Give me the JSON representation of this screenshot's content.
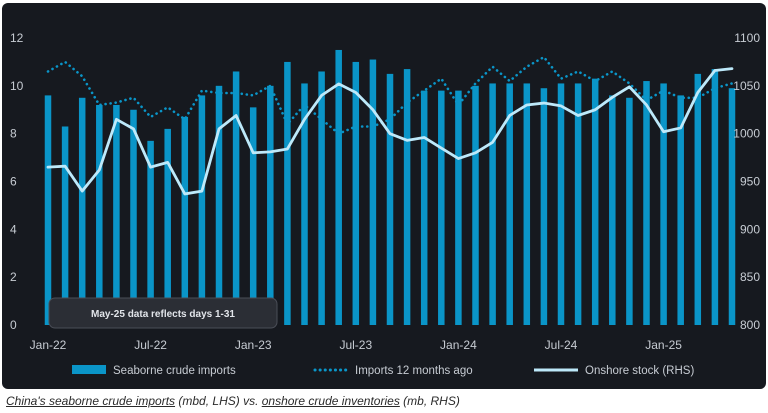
{
  "chart_data": {
    "type": "bar",
    "x": [
      "Jan-22",
      "Feb-22",
      "Mar-22",
      "Apr-22",
      "May-22",
      "Jun-22",
      "Jul-22",
      "Aug-22",
      "Sep-22",
      "Oct-22",
      "Nov-22",
      "Dec-22",
      "Jan-23",
      "Feb-23",
      "Mar-23",
      "Apr-23",
      "May-23",
      "Jun-23",
      "Jul-23",
      "Aug-23",
      "Sep-23",
      "Oct-23",
      "Nov-23",
      "Dec-23",
      "Jan-24",
      "Feb-24",
      "Mar-24",
      "Apr-24",
      "May-24",
      "Jun-24",
      "Jul-24",
      "Aug-24",
      "Sep-24",
      "Oct-24",
      "Nov-24",
      "Dec-24",
      "Jan-25",
      "Feb-25",
      "Mar-25",
      "Apr-25",
      "May-25"
    ],
    "x_tick_labels": [
      "Jan-22",
      "Jul-22",
      "Jan-23",
      "Jul-23",
      "Jan-24",
      "Jul-24",
      "Jan-25"
    ],
    "series": [
      {
        "name": "Seaborne crude imports",
        "kind": "bar",
        "axis": "left",
        "color": "#0a95c8",
        "values": [
          9.6,
          8.3,
          9.5,
          9.2,
          9.2,
          9.0,
          7.7,
          8.2,
          8.7,
          9.6,
          10.0,
          10.6,
          9.1,
          10.0,
          11.0,
          10.1,
          10.6,
          11.5,
          11.0,
          11.1,
          10.5,
          10.7,
          9.8,
          9.8,
          9.8,
          10.0,
          10.1,
          10.1,
          10.1,
          9.9,
          10.1,
          10.1,
          10.3,
          9.6,
          9.5,
          10.2,
          10.1,
          9.6,
          10.5,
          10.7,
          9.9
        ]
      },
      {
        "name": "Imports 12 months ago",
        "kind": "dotted-line",
        "axis": "left",
        "color": "#0a95c8",
        "values": [
          10.6,
          11.0,
          10.4,
          9.2,
          9.3,
          9.5,
          8.7,
          9.1,
          8.6,
          9.8,
          9.7,
          9.7,
          9.6,
          10.0,
          8.4,
          9.2,
          8.6,
          8.0,
          8.3,
          8.3,
          8.6,
          9.3,
          9.8,
          10.3,
          9.2,
          10.1,
          10.8,
          10.2,
          10.8,
          11.2,
          10.3,
          10.6,
          10.2,
          10.6,
          10.1,
          9.4,
          9.8,
          9.5,
          9.5,
          9.9,
          10.1
        ]
      },
      {
        "name": "Onshore stock (RHS)",
        "kind": "line",
        "axis": "right",
        "color": "#bde9fa",
        "values": [
          965,
          966,
          940,
          962,
          1015,
          1005,
          965,
          970,
          937,
          940,
          1005,
          1019,
          980,
          981,
          984,
          1015,
          1040,
          1052,
          1043,
          1025,
          1000,
          993,
          996,
          985,
          974,
          980,
          991,
          1019,
          1030,
          1032,
          1029,
          1019,
          1025,
          1038,
          1049,
          1030,
          1002,
          1006,
          1043,
          1066,
          1068
        ]
      }
    ],
    "ylim_left": [
      0,
      12
    ],
    "yticks_left": [
      0,
      2,
      4,
      6,
      8,
      10,
      12
    ],
    "ylim_right": [
      800,
      1100
    ],
    "yticks_right": [
      800,
      850,
      900,
      950,
      1000,
      1050,
      1100
    ],
    "annotation": "May-25 data reflects days 1-31",
    "legend_position": "bottom",
    "grid": false
  },
  "colors": {
    "background": "#16191f",
    "bar": "#0a95c8",
    "dotted": "#0a95c8",
    "stock_line": "#bde9fa",
    "text": "#c7ccd3"
  },
  "caption": {
    "part1": "China's seaborne crude imports",
    "part2": " (mbd, LHS) vs. ",
    "part3": "onshore crude inventories",
    "part4": " (mb, RHS)"
  }
}
